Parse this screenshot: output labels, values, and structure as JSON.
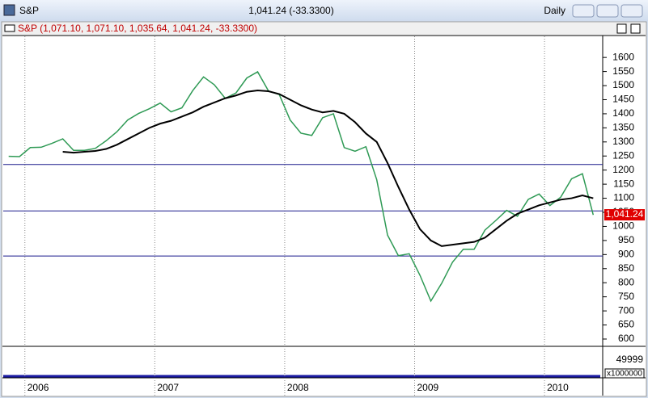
{
  "window": {
    "title": "S&P",
    "quote": "1,041.24 (-33.3300)",
    "period": "Daily",
    "header": "S&P (1,071.10, 1,071.10, 1,035.64, 1,041.24, -33.3300)",
    "volume_label": "49999",
    "volume_unit": "x1000000"
  },
  "chart_data": {
    "type": "line",
    "categories": [
      null,
      null,
      "2006",
      null,
      null,
      null,
      null,
      null,
      null,
      null,
      null,
      null,
      null,
      null,
      "2007",
      null,
      null,
      null,
      null,
      null,
      null,
      null,
      null,
      null,
      null,
      null,
      "2008",
      null,
      null,
      null,
      null,
      null,
      null,
      null,
      null,
      null,
      null,
      null,
      "2009",
      null,
      null,
      null,
      null,
      null,
      null,
      null,
      null,
      null,
      null,
      null,
      "2010",
      null,
      null,
      null,
      null
    ],
    "series": [
      {
        "color": "#2f9a55",
        "values": [
          1249,
          1248,
          1280,
          1281,
          1295,
          1311,
          1270,
          1270,
          1277,
          1304,
          1336,
          1378,
          1401,
          1418,
          1438,
          1407,
          1421,
          1482,
          1531,
          1503,
          1455,
          1474,
          1527,
          1549,
          1481,
          1468,
          1378,
          1331,
          1323,
          1386,
          1400,
          1280,
          1267,
          1283,
          1166,
          969,
          896,
          903,
          826,
          735,
          798,
          873,
          919,
          919,
          987,
          1021,
          1057,
          1036,
          1096,
          1115,
          1074,
          1104,
          1169,
          1187,
          1041
        ]
      },
      {
        "color": "#000000",
        "values": [
          null,
          null,
          null,
          null,
          null,
          1265,
          1262,
          1265,
          1268,
          1275,
          1290,
          1310,
          1330,
          1350,
          1365,
          1375,
          1390,
          1405,
          1425,
          1440,
          1455,
          1465,
          1478,
          1483,
          1480,
          1470,
          1450,
          1430,
          1415,
          1405,
          1410,
          1400,
          1370,
          1330,
          1300,
          1225,
          1140,
          1060,
          990,
          950,
          930,
          935,
          940,
          945,
          960,
          990,
          1020,
          1045,
          1060,
          1075,
          1085,
          1095,
          1100,
          1110,
          1100
        ]
      }
    ],
    "hlines": [
      1220,
      1055,
      895
    ],
    "hline_color": "#1a1a8c",
    "last_value": {
      "value": 1041.24,
      "label": "1,041.24"
    },
    "ylim": [
      577,
      1675
    ],
    "yticks": [
      600,
      650,
      700,
      750,
      800,
      850,
      900,
      950,
      1000,
      1050,
      1100,
      1150,
      1200,
      1250,
      1300,
      1350,
      1400,
      1450,
      1500,
      1550,
      1600
    ]
  }
}
